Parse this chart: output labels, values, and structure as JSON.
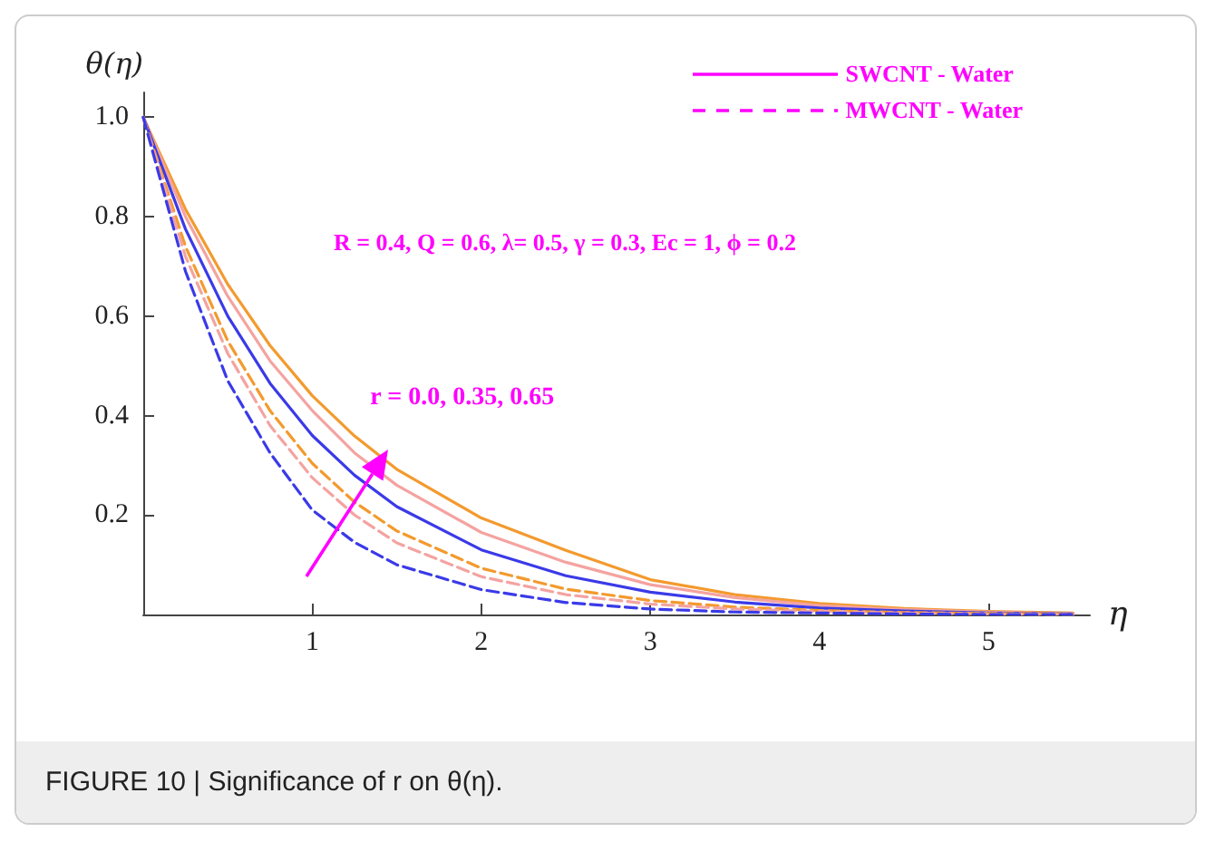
{
  "chart_data": {
    "type": "line",
    "xlabel": "η",
    "ylabel": "θ(η)",
    "x": [
      0,
      0.25,
      0.5,
      0.75,
      1,
      1.25,
      1.5,
      2,
      2.5,
      3,
      3.5,
      4,
      4.5,
      5,
      5.5
    ],
    "series": [
      {
        "color": "#f39a2e",
        "line_style": "solid",
        "values": [
          1,
          0.815,
          0.664,
          0.541,
          0.44,
          0.359,
          0.292,
          0.194,
          0.129,
          0.07,
          0.04,
          0.022,
          0.012,
          0.006,
          0.003
        ]
      },
      {
        "color": "#f4a3a0",
        "line_style": "solid",
        "values": [
          1,
          0.8,
          0.64,
          0.51,
          0.41,
          0.325,
          0.26,
          0.165,
          0.105,
          0.06,
          0.034,
          0.018,
          0.01,
          0.005,
          0.002
        ]
      },
      {
        "color": "#3a3ae8",
        "line_style": "solid",
        "values": [
          1,
          0.775,
          0.6,
          0.465,
          0.36,
          0.28,
          0.217,
          0.13,
          0.078,
          0.045,
          0.025,
          0.013,
          0.007,
          0.003,
          0.001
        ]
      },
      {
        "color": "#f39a2e",
        "line_style": "dashed",
        "values": [
          1,
          0.74,
          0.55,
          0.41,
          0.304,
          0.226,
          0.168,
          0.093,
          0.051,
          0.028,
          0.015,
          0.008,
          0.004,
          0.002,
          0.001
        ]
      },
      {
        "color": "#f4a3a0",
        "line_style": "dashed",
        "values": [
          1,
          0.72,
          0.525,
          0.38,
          0.275,
          0.2,
          0.144,
          0.076,
          0.04,
          0.021,
          0.011,
          0.006,
          0.003,
          0.001,
          0
        ]
      },
      {
        "color": "#3a3ae8",
        "line_style": "dashed",
        "values": [
          1,
          0.69,
          0.47,
          0.325,
          0.21,
          0.145,
          0.1,
          0.05,
          0.024,
          0.011,
          0.005,
          0.003,
          0.001,
          0,
          0
        ]
      }
    ],
    "xlim": [
      0,
      5.6
    ],
    "ylim": [
      0,
      1.05
    ],
    "xticks": [
      1,
      2,
      3,
      4,
      5
    ],
    "yticks": [
      0.2,
      0.4,
      0.6,
      0.8,
      {
        "value": 1,
        "label": "1.0"
      }
    ],
    "grid": false,
    "marker": "none",
    "annotations": [
      "SWCNT - Water",
      "MWCNT - Water",
      "R = 0.4, Q = 0.6, λ= 0.5, γ = 0.3, Ec = 1, ϕ = 0.2",
      {
        "text": "r = 0.0, 0.35, 0.65",
        "x": 1.45,
        "y": 0.33
      },
      "FIGURE 10 | Significance of r on θ(η)."
    ]
  }
}
